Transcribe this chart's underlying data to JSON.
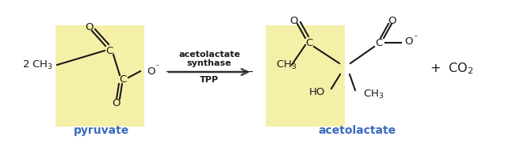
{
  "bg_color": "#ffffff",
  "yellow_bg": "#f5f0a8",
  "label_color": "#3a6bbf",
  "text_color": "#1a1a1a",
  "arrow_color": "#444444",
  "enzyme_lines": [
    "acetolactate",
    "synthase",
    "TPP"
  ],
  "label_pyruvate": "pyruvate",
  "label_acetolactate": "acetolactate",
  "figsize": [
    6.66,
    1.82
  ],
  "dpi": 100
}
